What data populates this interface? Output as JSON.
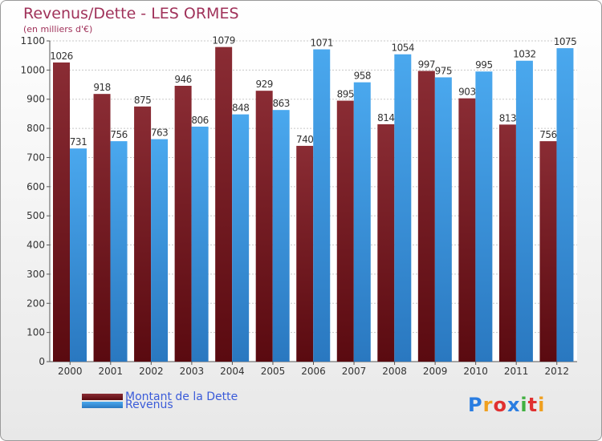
{
  "chart_data": {
    "type": "bar",
    "title": "Revenus/Dette - LES ORMES",
    "subtitle": "(en milliers d'€)",
    "categories": [
      "2000",
      "2001",
      "2002",
      "2003",
      "2004",
      "2005",
      "2006",
      "2007",
      "2008",
      "2009",
      "2010",
      "2011",
      "2012"
    ],
    "series": [
      {
        "name": "Montant de la Dette",
        "color": "#7a1c24",
        "values": [
          1026,
          918,
          875,
          946,
          1079,
          929,
          740,
          895,
          814,
          997,
          903,
          813,
          756
        ]
      },
      {
        "name": "Revenus",
        "color": "#3d95dc",
        "values": [
          731,
          756,
          763,
          806,
          848,
          863,
          1071,
          958,
          1054,
          975,
          995,
          1032,
          1075
        ]
      }
    ],
    "ylim": [
      0,
      1100
    ],
    "yticks": [
      0,
      100,
      200,
      300,
      400,
      500,
      600,
      700,
      800,
      900,
      1000,
      1100
    ],
    "grid": true,
    "legend_position": "bottom-left",
    "data_labels": true
  },
  "logo": {
    "text": "Proxiti",
    "letters": [
      "P",
      "r",
      "o",
      "x",
      "i",
      "t",
      "i"
    ],
    "colors": [
      "#2a7de1",
      "#f0a020",
      "#e03030",
      "#2a7de1",
      "#40b040",
      "#e03030",
      "#f0a020"
    ]
  }
}
